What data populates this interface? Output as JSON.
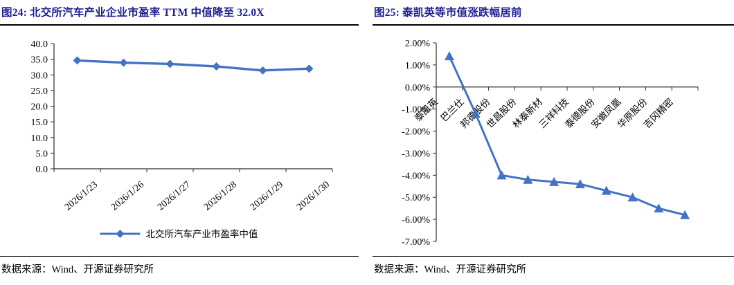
{
  "colors": {
    "accent_line": "#4472C4",
    "title_navy": "#1E1E91",
    "axis": "#2b2b2b",
    "text": "#000000"
  },
  "sources": [
    "数据来源：Wind、开源证券研究所",
    "数据来源：Wind、开源证券研究所"
  ],
  "chart_data": [
    {
      "type": "line",
      "title": "图24:  北交所汽车产业企业市盈率 TTM 中值降至 32.0X",
      "categories": [
        "2026/1/23",
        "2026/1/26",
        "2026/1/27",
        "2026/1/28",
        "2026/1/29",
        "2026/1/30"
      ],
      "values": [
        34.6,
        33.9,
        33.5,
        32.7,
        31.4,
        32.0
      ],
      "ylim": [
        0,
        40
      ],
      "ytick_step": 5,
      "ytick_labels": [
        "40.0",
        "35.0",
        "30.0",
        "25.0",
        "20.0",
        "15.0",
        "10.0",
        "5.0",
        "0.0"
      ],
      "xlabel": "",
      "ylabel": "",
      "grid": false,
      "marker": "diamond",
      "line_color": "#4472C4",
      "legend": [
        "北交所汽车产业市盈率中值"
      ],
      "legend_position": "bottom"
    },
    {
      "type": "line",
      "title": "图25:  泰凯英等市值涨跌幅居前",
      "categories": [
        "泰凯英",
        "巴兰仕",
        "邦德股份",
        "世昌股份",
        "林泰新材",
        "三祥科技",
        "泰德股份",
        "安徽凤凰",
        "华原股份",
        "吉冈精密"
      ],
      "values": [
        1.4,
        -1.2,
        -4.0,
        -4.2,
        -4.3,
        -4.4,
        -4.7,
        -5.0,
        -5.5,
        -5.8
      ],
      "values_unit": "%",
      "ylim": [
        -7,
        2
      ],
      "ytick_step": 1,
      "ytick_labels": [
        "2.00%",
        "1.00%",
        "0.00%",
        "-1.00%",
        "-2.00%",
        "-3.00%",
        "-4.00%",
        "-5.00%",
        "-6.00%",
        "-7.00%"
      ],
      "xlabel": "",
      "ylabel": "",
      "grid": false,
      "marker": "triangle-up",
      "line_color": "#4472C4",
      "zero_axis": true
    }
  ]
}
